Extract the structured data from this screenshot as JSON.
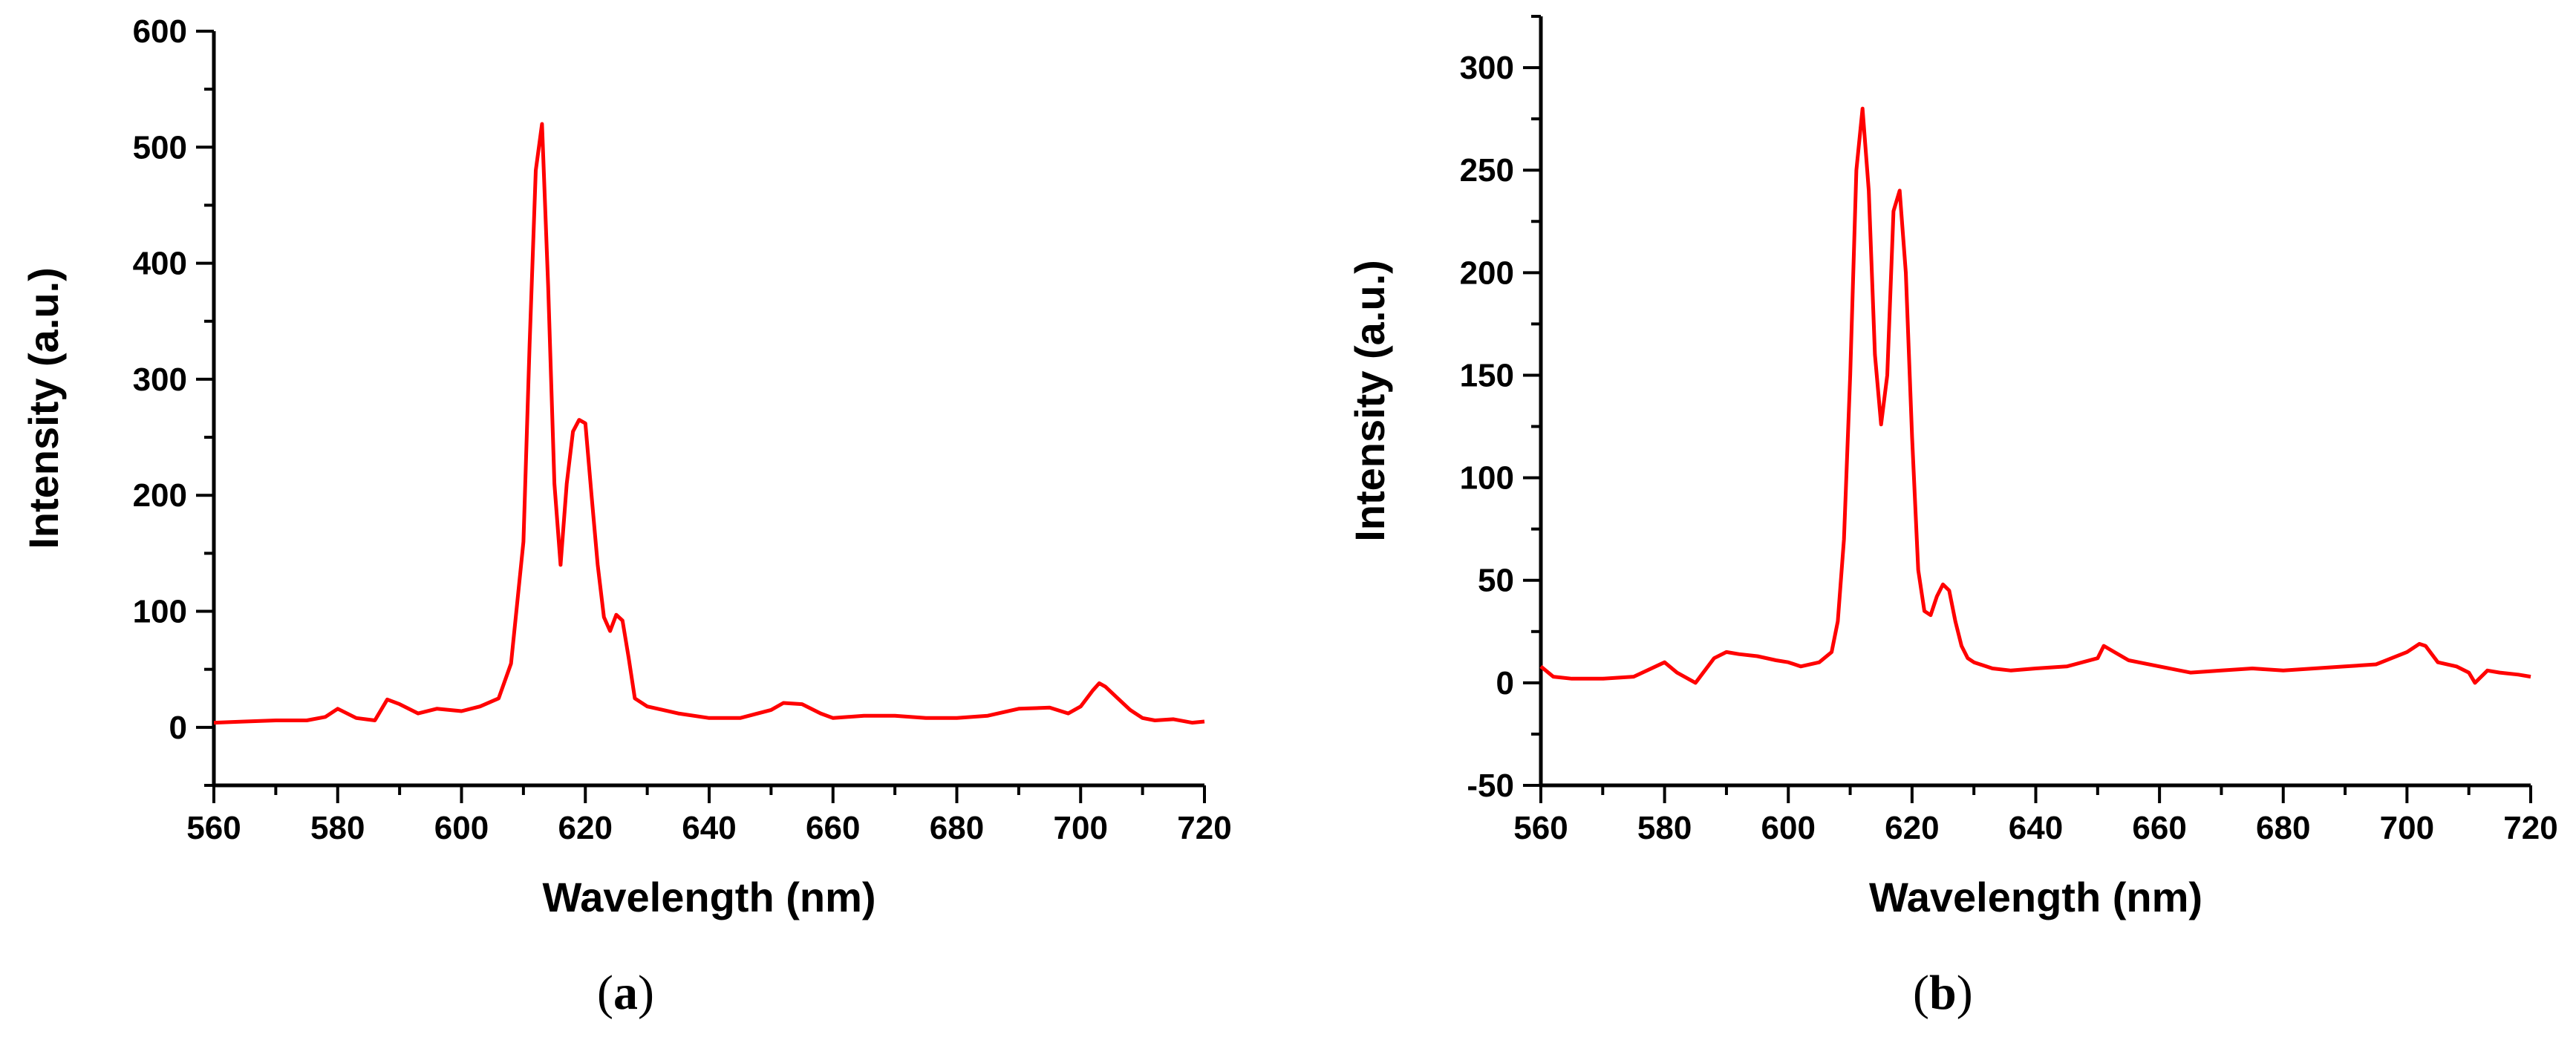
{
  "chart_data": [
    {
      "type": "line",
      "panel_label": "a",
      "xlabel": "Wavelength (nm)",
      "ylabel": "Intensity (a.u.)",
      "xlim": [
        560,
        720
      ],
      "ylim": [
        -50,
        600
      ],
      "xticks": [
        560,
        580,
        600,
        620,
        640,
        660,
        680,
        700,
        720
      ],
      "yticks": [
        0,
        100,
        200,
        300,
        400,
        500,
        600
      ],
      "grid": false,
      "series": [
        {
          "color": "#ff0000",
          "x": [
            560,
            565,
            570,
            575,
            578,
            580,
            583,
            586,
            588,
            590,
            593,
            596,
            600,
            603,
            606,
            608,
            610,
            611,
            612,
            613,
            614,
            615,
            616,
            617,
            618,
            619,
            620,
            621,
            622,
            623,
            624,
            625,
            626,
            627,
            628,
            630,
            635,
            640,
            645,
            650,
            652,
            655,
            658,
            660,
            665,
            670,
            675,
            680,
            685,
            690,
            695,
            698,
            700,
            702,
            703,
            704,
            706,
            708,
            710,
            712,
            715,
            718,
            720
          ],
          "y": [
            4,
            5,
            6,
            6,
            9,
            16,
            8,
            6,
            24,
            20,
            12,
            16,
            14,
            18,
            25,
            55,
            160,
            330,
            480,
            520,
            380,
            210,
            140,
            210,
            255,
            265,
            262,
            200,
            140,
            95,
            83,
            97,
            92,
            60,
            25,
            18,
            12,
            8,
            8,
            15,
            21,
            20,
            12,
            8,
            10,
            10,
            8,
            8,
            10,
            16,
            17,
            12,
            18,
            32,
            38,
            35,
            25,
            15,
            8,
            6,
            7,
            4,
            5
          ]
        }
      ]
    },
    {
      "type": "line",
      "panel_label": "b",
      "xlabel": "Wavelength (nm)",
      "ylabel": "Intensity (a.u.)",
      "xlim": [
        560,
        720
      ],
      "ylim": [
        -50,
        325
      ],
      "xticks": [
        560,
        580,
        600,
        620,
        640,
        660,
        680,
        700,
        720
      ],
      "yticks": [
        -50,
        0,
        50,
        100,
        150,
        200,
        250,
        300
      ],
      "grid": false,
      "series": [
        {
          "color": "#ff0000",
          "x": [
            560,
            562,
            565,
            570,
            575,
            580,
            582,
            585,
            588,
            590,
            592,
            595,
            598,
            600,
            602,
            605,
            607,
            608,
            609,
            610,
            611,
            612,
            613,
            614,
            615,
            616,
            617,
            618,
            619,
            620,
            621,
            622,
            623,
            624,
            625,
            626,
            627,
            628,
            629,
            630,
            633,
            636,
            640,
            645,
            650,
            651,
            655,
            660,
            665,
            670,
            675,
            680,
            685,
            690,
            695,
            700,
            702,
            703,
            705,
            708,
            710,
            711,
            713,
            715,
            718,
            720
          ],
          "y": [
            8,
            3,
            2,
            2,
            3,
            10,
            5,
            0,
            12,
            15,
            14,
            13,
            11,
            10,
            8,
            10,
            15,
            30,
            70,
            150,
            250,
            280,
            240,
            160,
            126,
            150,
            230,
            240,
            200,
            120,
            55,
            35,
            33,
            42,
            48,
            45,
            30,
            18,
            12,
            10,
            7,
            6,
            7,
            8,
            12,
            18,
            11,
            8,
            5,
            6,
            7,
            6,
            7,
            8,
            9,
            15,
            19,
            18,
            10,
            8,
            5,
            0,
            6,
            5,
            4,
            3
          ]
        }
      ]
    }
  ]
}
